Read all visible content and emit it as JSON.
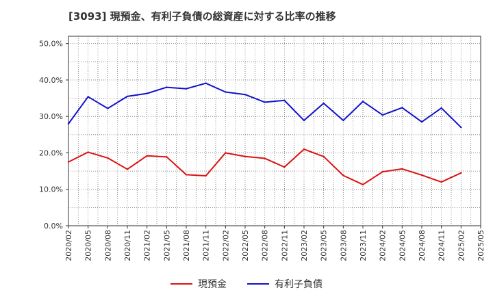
{
  "chart_data": {
    "type": "line",
    "title": "[3093]  現預金、有利子負債の総資産に対する比率の推移",
    "xlabel": "",
    "ylabel": "",
    "ylim": [
      0,
      0.52
    ],
    "yticks": [
      0,
      0.1,
      0.2,
      0.3,
      0.4,
      0.5
    ],
    "ytick_labels": [
      "0.0%",
      "10.0%",
      "20.0%",
      "30.0%",
      "40.0%",
      "50.0%"
    ],
    "categories": [
      "2020/02",
      "2020/05",
      "2020/08",
      "2020/11",
      "2021/02",
      "2021/05",
      "2021/08",
      "2021/11",
      "2022/02",
      "2022/05",
      "2022/08",
      "2022/11",
      "2023/02",
      "2023/05",
      "2023/08",
      "2023/11",
      "2024/02",
      "2024/05",
      "2024/08",
      "2024/11",
      "2025/02",
      "2025/05"
    ],
    "grid": true,
    "legend_position": "bottom",
    "series": [
      {
        "name": "現預金",
        "color": "#dd1111",
        "values": [
          0.175,
          0.202,
          0.186,
          0.155,
          0.192,
          0.189,
          0.14,
          0.137,
          0.2,
          0.19,
          0.185,
          0.161,
          0.21,
          0.19,
          0.138,
          0.113,
          0.148,
          0.156,
          0.139,
          0.12,
          0.145,
          null
        ]
      },
      {
        "name": "有利子負債",
        "color": "#1111cc",
        "values": [
          0.28,
          0.354,
          0.322,
          0.355,
          0.363,
          0.38,
          0.376,
          0.391,
          0.367,
          0.36,
          0.339,
          0.344,
          0.289,
          0.336,
          0.289,
          0.341,
          0.304,
          0.324,
          0.285,
          0.323,
          0.27,
          null
        ]
      }
    ]
  }
}
